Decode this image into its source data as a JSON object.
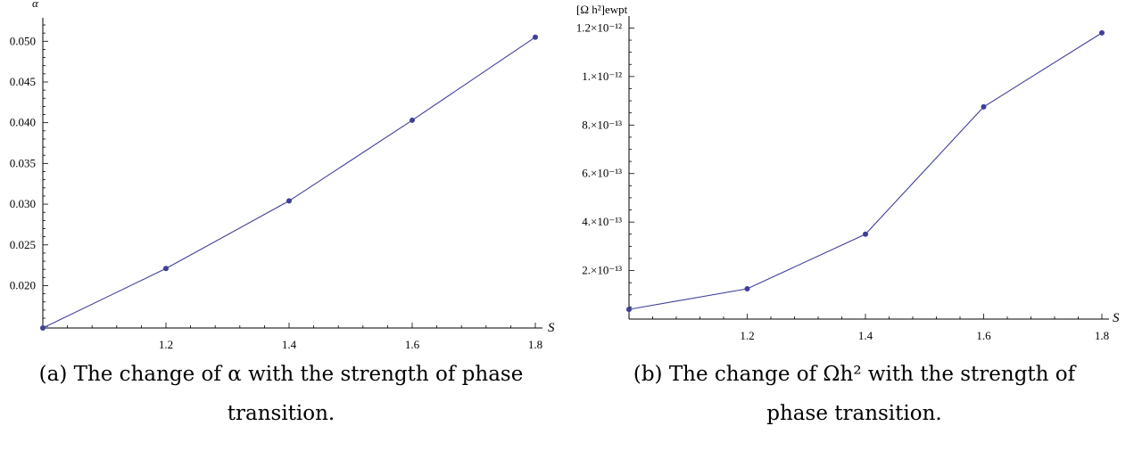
{
  "chart_data": [
    {
      "type": "line",
      "ylabel": "α",
      "xlabel": "S",
      "x": [
        1.0,
        1.2,
        1.4,
        1.6,
        1.8
      ],
      "series": [
        {
          "values": [
            0.0148,
            0.0221,
            0.0304,
            0.0403,
            0.0505
          ]
        }
      ],
      "xlim": [
        1.0,
        1.8
      ],
      "ylim": [
        0.0148,
        0.052
      ],
      "xticks": [
        1.2,
        1.4,
        1.6,
        1.8
      ],
      "xtick_labels": [
        "1.2",
        "1.4",
        "1.6",
        "1.8"
      ],
      "yticks": [
        0.02,
        0.025,
        0.03,
        0.035,
        0.04,
        0.045,
        0.05
      ],
      "ytick_labels": [
        "0.020",
        "0.025",
        "0.030",
        "0.035",
        "0.040",
        "0.045",
        "0.050"
      ],
      "color": "#3f3f9a",
      "grid": false
    },
    {
      "type": "line",
      "ylabel": "[Ω h²]ewpt",
      "xlabel": "S",
      "x": [
        1.0,
        1.2,
        1.4,
        1.6,
        1.8
      ],
      "series": [
        {
          "values": [
            4e-14,
            1.25e-13,
            3.5e-13,
            8.75e-13,
            1.18e-12
          ]
        }
      ],
      "xlim": [
        1.0,
        1.8
      ],
      "ylim": [
        0,
        1.22e-12
      ],
      "xticks": [
        1.2,
        1.4,
        1.6,
        1.8
      ],
      "xtick_labels": [
        "1.2",
        "1.4",
        "1.6",
        "1.8"
      ],
      "yticks": [
        2e-13,
        4e-13,
        6e-13,
        8e-13,
        1e-12,
        1.2e-12
      ],
      "ytick_labels": [
        "2.×10⁻¹³",
        "4.×10⁻¹³",
        "6.×10⁻¹³",
        "8.×10⁻¹³",
        "1.×10⁻¹²",
        "1.2×10⁻¹²"
      ],
      "color": "#3f3f9a",
      "grid": false
    }
  ],
  "captions": {
    "a_line1": "(a) The change of α with the strength of phase",
    "a_line2": "transition.",
    "b_line1": "(b) The change of Ωh² with the strength of",
    "b_line2": "phase transition."
  }
}
